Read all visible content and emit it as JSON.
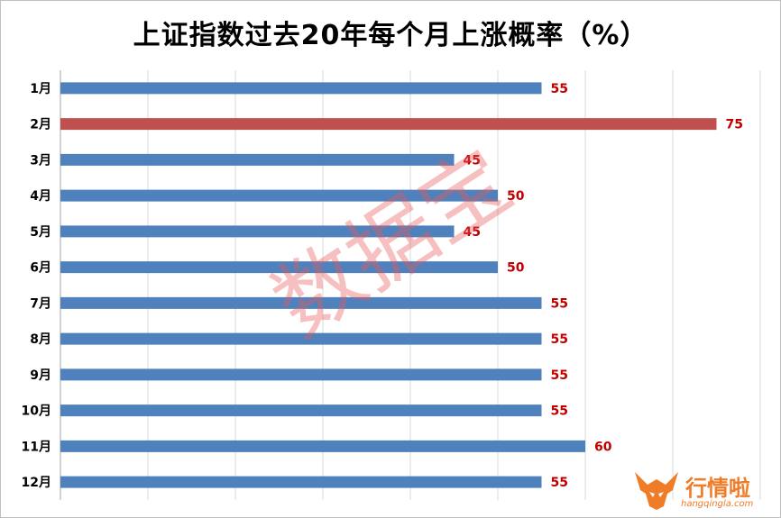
{
  "chart_data": {
    "type": "bar",
    "orientation": "horizontal",
    "title": "上证指数过去20年每个月上涨概率（%）",
    "categories": [
      "1月",
      "2月",
      "3月",
      "4月",
      "5月",
      "6月",
      "7月",
      "8月",
      "9月",
      "10月",
      "11月",
      "12月"
    ],
    "values": [
      55,
      75,
      45,
      50,
      45,
      50,
      55,
      55,
      55,
      55,
      60,
      55
    ],
    "value_labels": [
      "55",
      "75",
      "45",
      "50",
      "45",
      "50",
      "55",
      "55",
      "55",
      "55",
      "60",
      "55"
    ],
    "highlight_category": "2月",
    "xlim": [
      0,
      80
    ],
    "x_gridline_step": 10,
    "grid": true,
    "legend": "none"
  },
  "colors": {
    "bar": "#4f81bd",
    "highlight_bar": "#c0504d",
    "value_label": "#c00000",
    "gridline": "#d9d9d9",
    "watermark": "#eb5a5a",
    "logo": "#f07c28"
  },
  "watermark": {
    "text": "数据宝"
  },
  "logo": {
    "icon": "bull-head-icon",
    "name": "行情啦",
    "url_text": "hangqingla.com"
  }
}
